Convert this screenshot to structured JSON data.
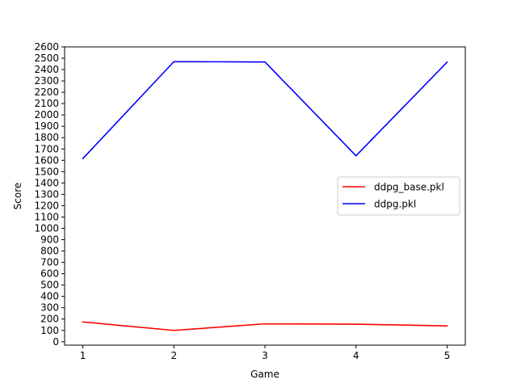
{
  "chart_data": {
    "type": "line",
    "title": "",
    "xlabel": "Game",
    "ylabel": "Score",
    "x": [
      1,
      2,
      3,
      4,
      5
    ],
    "xlim": [
      0.8,
      5.2
    ],
    "ylim": [
      -30,
      2600
    ],
    "x_ticks": [
      "1",
      "2",
      "3",
      "4",
      "5"
    ],
    "y_ticks": [
      "0",
      "100",
      "200",
      "300",
      "400",
      "500",
      "600",
      "700",
      "800",
      "900",
      "1000",
      "1100",
      "1200",
      "1300",
      "1400",
      "1500",
      "1600",
      "1700",
      "1800",
      "1900",
      "2000",
      "2100",
      "2200",
      "2300",
      "2400",
      "2500",
      "2600"
    ],
    "grid": false,
    "legend_position": "center-right",
    "series": [
      {
        "name": "ddpg_base.pkl",
        "color": "#ff0000",
        "values": [
          175,
          100,
          158,
          155,
          140
        ]
      },
      {
        "name": "ddpg.pkl",
        "color": "#0000ff",
        "values": [
          1615,
          2470,
          2467,
          1640,
          2465
        ]
      }
    ]
  }
}
